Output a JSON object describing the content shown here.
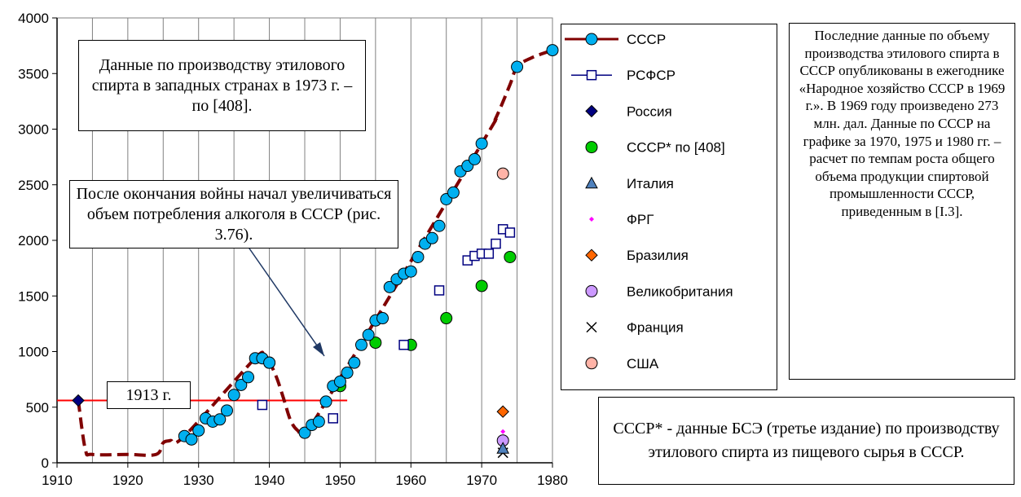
{
  "chart_data": {
    "type": "scatter",
    "xlim": [
      1910,
      1980
    ],
    "ylim": [
      0,
      4000
    ],
    "x_ticks": [
      1910,
      1920,
      1930,
      1940,
      1950,
      1960,
      1970,
      1980
    ],
    "y_ticks": [
      0,
      500,
      1000,
      1500,
      2000,
      2500,
      3000,
      3500,
      4000
    ],
    "grid": "vertical",
    "reference_line": {
      "y": 560,
      "x_range": [
        1910,
        1951
      ],
      "color": "#ff0000"
    },
    "series": [
      {
        "name": "СССР",
        "marker": "circle",
        "color": "#00b0f0",
        "line_color": "#800000",
        "points": [
          [
            1928,
            240
          ],
          [
            1929,
            210
          ],
          [
            1930,
            290
          ],
          [
            1931,
            400
          ],
          [
            1932,
            370
          ],
          [
            1933,
            390
          ],
          [
            1934,
            470
          ],
          [
            1935,
            610
          ],
          [
            1936,
            700
          ],
          [
            1937,
            770
          ],
          [
            1938,
            940
          ],
          [
            1939,
            940
          ],
          [
            1940,
            900
          ],
          [
            1945,
            270
          ],
          [
            1946,
            340
          ],
          [
            1947,
            370
          ],
          [
            1948,
            550
          ],
          [
            1949,
            690
          ],
          [
            1950,
            730
          ],
          [
            1951,
            810
          ],
          [
            1952,
            900
          ],
          [
            1953,
            1060
          ],
          [
            1954,
            1150
          ],
          [
            1955,
            1280
          ],
          [
            1956,
            1300
          ],
          [
            1957,
            1580
          ],
          [
            1958,
            1650
          ],
          [
            1959,
            1700
          ],
          [
            1960,
            1720
          ],
          [
            1961,
            1850
          ],
          [
            1962,
            1970
          ],
          [
            1963,
            2020
          ],
          [
            1964,
            2130
          ],
          [
            1965,
            2370
          ],
          [
            1966,
            2430
          ],
          [
            1967,
            2620
          ],
          [
            1968,
            2670
          ],
          [
            1969,
            2730
          ],
          [
            1970,
            2870
          ],
          [
            1975,
            3560
          ],
          [
            1980,
            3710
          ]
        ],
        "dashed_interpolation": [
          [
            1913,
            560
          ],
          [
            1914,
            120
          ],
          [
            1915,
            75
          ],
          [
            1920,
            75
          ],
          [
            1924,
            75
          ],
          [
            1925,
            180
          ],
          [
            1926,
            200
          ],
          [
            1928,
            240
          ],
          [
            1938,
            940
          ],
          [
            1939,
            940
          ],
          [
            1940,
            900
          ],
          [
            1941,
            770
          ],
          [
            1942,
            580
          ],
          [
            1943,
            380
          ],
          [
            1944,
            290
          ],
          [
            1945,
            270
          ],
          [
            1948,
            550
          ],
          [
            1970,
            2870
          ],
          [
            1972,
            3100
          ],
          [
            1974,
            3400
          ],
          [
            1975,
            3560
          ],
          [
            1977,
            3640
          ],
          [
            1980,
            3710
          ]
        ]
      },
      {
        "name": "РСФСР",
        "marker": "square-open",
        "color": "#000080",
        "points": [
          [
            1939,
            520
          ],
          [
            1949,
            400
          ],
          [
            1959,
            1060
          ],
          [
            1964,
            1550
          ],
          [
            1968,
            1820
          ],
          [
            1969,
            1860
          ],
          [
            1970,
            1880
          ],
          [
            1971,
            1880
          ],
          [
            1972,
            1970
          ],
          [
            1973,
            2100
          ],
          [
            1974,
            2070
          ]
        ]
      },
      {
        "name": "Россия",
        "marker": "diamond",
        "color": "#000080",
        "points": [
          [
            1913,
            560
          ]
        ]
      },
      {
        "name": "СССР* по [408]",
        "marker": "circle",
        "color": "#00cc00",
        "points": [
          [
            1940,
            900
          ],
          [
            1950,
            690
          ],
          [
            1955,
            1080
          ],
          [
            1960,
            1060
          ],
          [
            1965,
            1300
          ],
          [
            1970,
            1590
          ],
          [
            1974,
            1850
          ]
        ]
      },
      {
        "name": "Италия",
        "marker": "triangle",
        "color": "#4f81bd",
        "points": [
          [
            1973,
            130
          ]
        ]
      },
      {
        "name": "ФРГ",
        "marker": "small-diamond",
        "color": "#ff00ff",
        "points": [
          [
            1973,
            280
          ]
        ]
      },
      {
        "name": "Бразилия",
        "marker": "diamond",
        "color": "#ff6600",
        "points": [
          [
            1973,
            460
          ]
        ]
      },
      {
        "name": "Великобритания",
        "marker": "circle",
        "color": "#cc99ff",
        "points": [
          [
            1973,
            200
          ]
        ]
      },
      {
        "name": "Франция",
        "marker": "x",
        "color": "#000000",
        "points": [
          [
            1973,
            90
          ]
        ]
      },
      {
        "name": "США",
        "marker": "circle",
        "color": "#ffb3a7",
        "points": [
          [
            1973,
            2600
          ]
        ]
      }
    ]
  },
  "notes": {
    "west_data": "Данные по производству этилового спирта в западных странах в 1973 г. – по [408].",
    "postwar": "После окончания войны начал увеличиваться объем потребления алкоголя в СССР (рис. 3.76).",
    "year_1913": "1913 г.",
    "ussr_star": "СССР* - данные БСЭ (третье издание) по производству этилового спирта из пищевого сырья в СССР.",
    "right": "Последние данные по объему производства этилового спирта в СССР опубликованы в ежегоднике «Народное хозяйство СССР в 1969 г.». В 1969 году произведено 273 млн. дал. Данные по СССР на графике за 1970, 1975 и 1980 гг. – расчет по темпам роста общего объема продукции спиртовой промышленности СССР, приведенным в [I.3]."
  },
  "legend": {
    "items": [
      "СССР",
      "РСФСР",
      "Россия",
      "СССР* по [408]",
      "Италия",
      "ФРГ",
      "Бразилия",
      "Великобритания",
      "Франция",
      "США"
    ]
  }
}
